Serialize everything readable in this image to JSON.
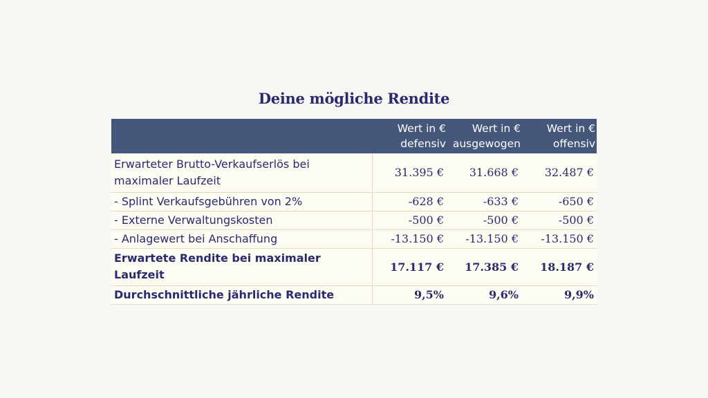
{
  "title": "Deine mögliche Rendite",
  "table": {
    "header": {
      "label": "",
      "columns": [
        {
          "line1": "Wert in €",
          "line2": "defensiv"
        },
        {
          "line1": "Wert in €",
          "line2": "ausgewogen"
        },
        {
          "line1": "Wert in €",
          "line2": "offensiv"
        }
      ]
    },
    "rows": [
      {
        "label": "Erwarteter Brutto-Verkaufserlös bei maximaler Laufzeit",
        "values": [
          "31.395 €",
          "31.668 €",
          "32.487 €"
        ],
        "bold": false
      },
      {
        "label": "- Splint Verkaufsgebühren von 2%",
        "values": [
          "-628 €",
          "-633 €",
          "-650 €"
        ],
        "bold": false
      },
      {
        "label": "- Externe Verwaltungskosten",
        "values": [
          "-500 €",
          "-500 €",
          "-500 €"
        ],
        "bold": false
      },
      {
        "label": "- Anlagewert bei Anschaffung",
        "values": [
          "-13.150 €",
          "-13.150 €",
          "-13.150 €"
        ],
        "bold": false
      },
      {
        "label": "Erwartete Rendite bei maximaler Laufzeit",
        "values": [
          "17.117 €",
          "17.385 €",
          "18.187 €"
        ],
        "bold": true
      },
      {
        "label": "Durchschnittliche jährliche Rendite",
        "values": [
          "9,5%",
          "9,6%",
          "9,9%"
        ],
        "bold": true
      }
    ]
  },
  "colors": {
    "background": "#f7f7f3",
    "header_fill": "#45577a",
    "text": "#2a2a6e",
    "cell_fill": "#fdfcf2",
    "grid_line": "#e2ddc0"
  }
}
